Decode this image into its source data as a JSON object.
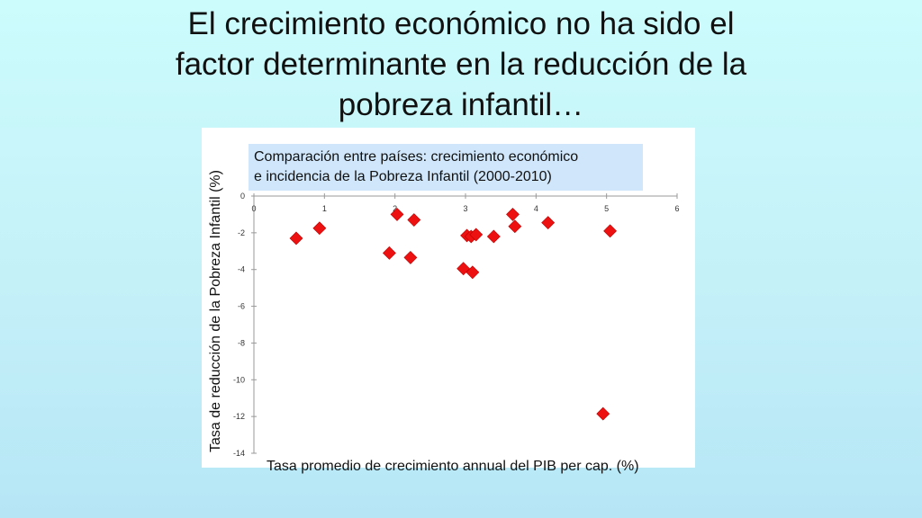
{
  "slide": {
    "title": "El crecimiento económico no ha sido el\nfactor determinante en la reducción de la\npobreza infantil…"
  },
  "chart_data": {
    "type": "scatter",
    "title": "Comparación entre países: crecimiento económico\ne incidencia de la Pobreza Infantil (2000-2010)",
    "xlabel": "Tasa promedio de crecimiento annual del PIB per cap. (%)",
    "ylabel": "Tasa de reducción de la Pobreza Infantil (%)",
    "xlim": [
      0,
      6
    ],
    "ylim": [
      -14,
      0
    ],
    "x_ticks": [
      0,
      1,
      2,
      3,
      4,
      5,
      6
    ],
    "y_ticks": [
      0,
      -2,
      -4,
      -6,
      -8,
      -10,
      -12,
      -14
    ],
    "x_axis_position": "top",
    "grid": false,
    "marker": "diamond",
    "marker_color": "#ee1111",
    "points": [
      {
        "x": 0.6,
        "y": -2.3
      },
      {
        "x": 0.93,
        "y": -1.75
      },
      {
        "x": 1.92,
        "y": -3.1
      },
      {
        "x": 2.03,
        "y": -1.0
      },
      {
        "x": 2.22,
        "y": -3.35
      },
      {
        "x": 2.27,
        "y": -1.3
      },
      {
        "x": 2.97,
        "y": -3.95
      },
      {
        "x": 3.02,
        "y": -2.15
      },
      {
        "x": 3.08,
        "y": -2.2
      },
      {
        "x": 3.1,
        "y": -4.15
      },
      {
        "x": 3.15,
        "y": -2.1
      },
      {
        "x": 3.4,
        "y": -2.2
      },
      {
        "x": 3.67,
        "y": -1.0
      },
      {
        "x": 3.7,
        "y": -1.65
      },
      {
        "x": 4.17,
        "y": -1.45
      },
      {
        "x": 4.95,
        "y": -11.85
      },
      {
        "x": 5.05,
        "y": -1.9
      }
    ]
  }
}
